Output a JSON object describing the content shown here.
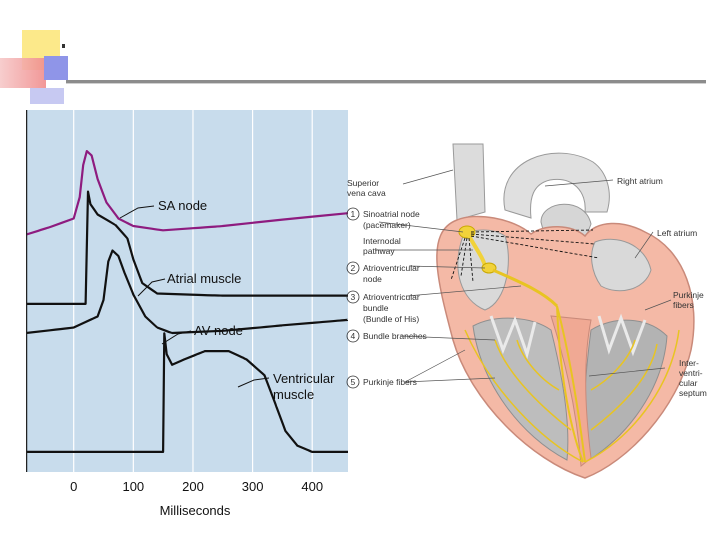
{
  "chart_data": {
    "type": "line",
    "xlabel": "Milliseconds",
    "xlim": [
      -80,
      460
    ],
    "xticks": [
      0,
      100,
      200,
      300,
      400
    ],
    "series": [
      {
        "name": "SA node",
        "color": "#8e1b7f",
        "points": [
          [
            -80,
            -70
          ],
          [
            -40,
            -63
          ],
          [
            0,
            -55
          ],
          [
            10,
            -35
          ],
          [
            16,
            -5
          ],
          [
            22,
            8
          ],
          [
            30,
            4
          ],
          [
            40,
            -18
          ],
          [
            55,
            -40
          ],
          [
            75,
            -55
          ],
          [
            100,
            -62
          ],
          [
            150,
            -66
          ],
          [
            250,
            -62
          ],
          [
            350,
            -56
          ],
          [
            460,
            -50
          ]
        ]
      },
      {
        "name": "Atrial muscle",
        "color": "#111111",
        "points": [
          [
            -80,
            -88
          ],
          [
            20,
            -88
          ],
          [
            24,
            20
          ],
          [
            28,
            8
          ],
          [
            40,
            -2
          ],
          [
            70,
            -12
          ],
          [
            90,
            -25
          ],
          [
            100,
            -45
          ],
          [
            115,
            -68
          ],
          [
            140,
            -78
          ],
          [
            250,
            -80
          ],
          [
            460,
            -80
          ]
        ]
      },
      {
        "name": "AV node",
        "color": "#111111",
        "points": [
          [
            -80,
            -60
          ],
          [
            0,
            -55
          ],
          [
            40,
            -45
          ],
          [
            50,
            -30
          ],
          [
            58,
            5
          ],
          [
            65,
            15
          ],
          [
            75,
            10
          ],
          [
            85,
            -5
          ],
          [
            100,
            -25
          ],
          [
            120,
            -45
          ],
          [
            140,
            -55
          ],
          [
            165,
            -60
          ],
          [
            250,
            -58
          ],
          [
            350,
            -53
          ],
          [
            460,
            -48
          ]
        ]
      },
      {
        "name": "Ventricular muscle",
        "color": "#111111",
        "points": [
          [
            -80,
            -88
          ],
          [
            150,
            -88
          ],
          [
            152,
            25
          ],
          [
            156,
            5
          ],
          [
            165,
            -5
          ],
          [
            185,
            0
          ],
          [
            220,
            8
          ],
          [
            260,
            8
          ],
          [
            290,
            0
          ],
          [
            320,
            -15
          ],
          [
            340,
            -45
          ],
          [
            355,
            -68
          ],
          [
            375,
            -82
          ],
          [
            400,
            -88
          ],
          [
            460,
            -88
          ]
        ]
      }
    ],
    "labels": {
      "sa": "SA node",
      "atrial": "Atrial muscle",
      "av": "AV node",
      "vent1": "Ventricular",
      "vent2": "muscle"
    }
  },
  "heart": {
    "labels": {
      "svc1": "Superior",
      "svc2": "vena cava",
      "n1": "1",
      "sa1": "Sinoatrial node",
      "sa2": "(pacemaker)",
      "ip1": "Internodal",
      "ip2": "pathway",
      "n2": "2",
      "avn1": "Atrioventricular",
      "avn2": "node",
      "n3": "3",
      "avb1": "Atrioventricular",
      "avb2": "bundle",
      "avb3": "(Bundle of His)",
      "n4": "4",
      "bb": "Bundle branches",
      "n5": "5",
      "pf": "Purkinje fibers",
      "ra": "Right atrium",
      "la": "Left atrium",
      "pk1": "Purkinje",
      "pk2": "fibers",
      "is1": "Inter-",
      "is2": "ventri-",
      "is3": "cular",
      "is4": "septum"
    }
  }
}
